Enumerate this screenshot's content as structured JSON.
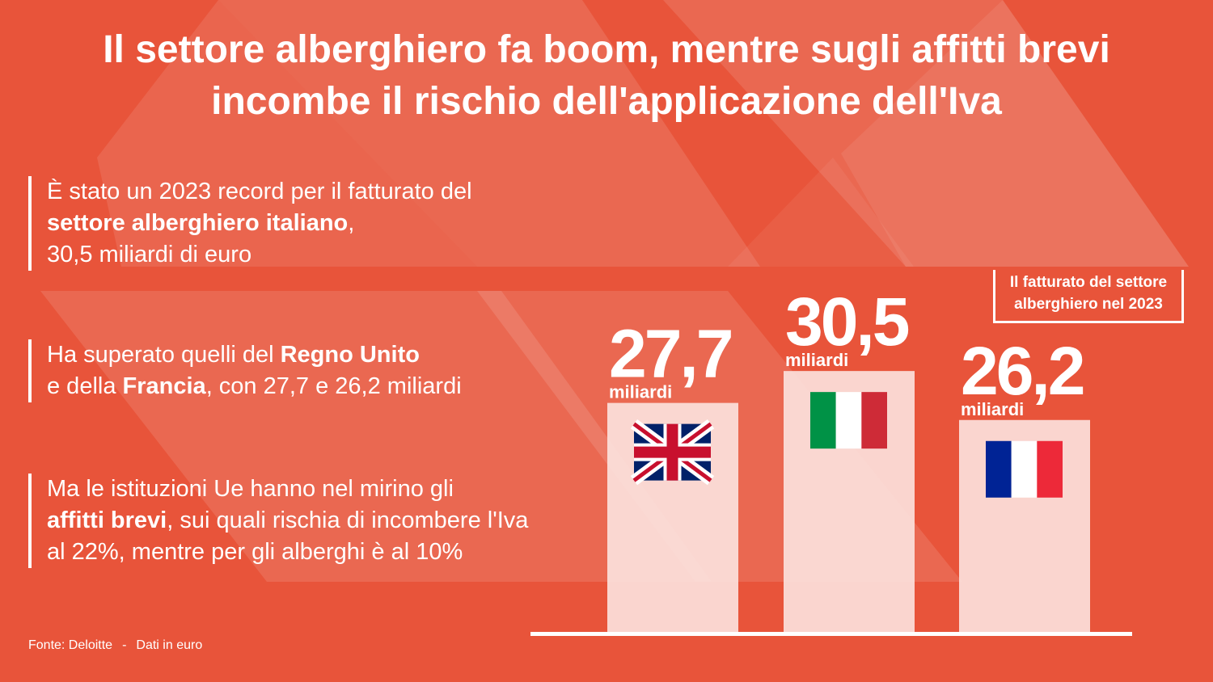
{
  "title": {
    "line1": "Il settore alberghiero fa boom, mentre sugli affitti brevi",
    "line2": "incombe il rischio dell'applicazione dell'Iva"
  },
  "points": {
    "p1": {
      "a": "È stato un 2023 record per il fatturato del",
      "b": "settore alberghiero italiano",
      "c": ",",
      "d": "30,5 miliardi di euro"
    },
    "p2": {
      "a": "Ha superato quelli del ",
      "b": "Regno Unito",
      "c": "e della ",
      "d": "Francia",
      "e": ", con 27,7 e 26,2 miliardi"
    },
    "p3": {
      "a": "Ma le istituzioni Ue hanno nel mirino gli",
      "b": "affitti brevi",
      "c": ", sui quali rischia di incombere l'Iva al 22%, mentre per gli alberghi è al 10%"
    }
  },
  "source": {
    "fonte": "Fonte: Deloitte",
    "sep": "-",
    "note": "Dati in euro"
  },
  "legend": {
    "line1": "Il fatturato del settore",
    "line2": "alberghiero nel 2023"
  },
  "colors": {
    "background": "#e8543a",
    "bar": "#fbe1dc",
    "axis": "#ffffff",
    "text": "#ffffff"
  },
  "chart_data": {
    "type": "bar",
    "categories": [
      "Regno Unito",
      "Italia",
      "Francia"
    ],
    "values": [
      27.7,
      30.5,
      26.2
    ],
    "value_labels": [
      "27,7",
      "30,5",
      "26,2"
    ],
    "unit_label": "miliardi",
    "flags": [
      "uk-flag-icon",
      "italy-flag-icon",
      "france-flag-icon"
    ],
    "title": "",
    "xlabel": "",
    "ylabel": "",
    "grid": false,
    "legend_position": "right"
  }
}
